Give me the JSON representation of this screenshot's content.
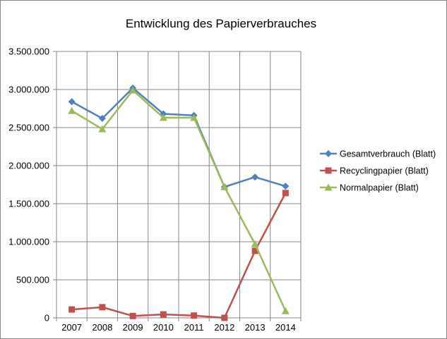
{
  "chart_data": {
    "type": "line",
    "title": "Entwicklung des Papierverbrauches",
    "xlabel": "",
    "ylabel": "",
    "categories": [
      "2007",
      "2008",
      "2009",
      "2010",
      "2011",
      "2012",
      "2013",
      "2014"
    ],
    "ylim": [
      0,
      3500000
    ],
    "yticks": [
      0,
      500000,
      1000000,
      1500000,
      2000000,
      2500000,
      3000000,
      3500000
    ],
    "ytick_labels": [
      "0",
      "500.000",
      "1.000.000",
      "1.500.000",
      "2.000.000",
      "2.500.000",
      "3.000.000",
      "3.500.000"
    ],
    "grid": true,
    "legend_position": "right",
    "series": [
      {
        "name": "Gesamtverbrauch (Blatt)",
        "color": "#4F81BD",
        "marker": "diamond",
        "values": [
          2840000,
          2620000,
          3020000,
          2680000,
          2660000,
          1720000,
          1850000,
          1730000
        ]
      },
      {
        "name": "Recyclingpapier (Blatt)",
        "color": "#C0504D",
        "marker": "square",
        "values": [
          110000,
          140000,
          25000,
          45000,
          30000,
          0,
          880000,
          1640000
        ]
      },
      {
        "name": "Normalpapier (Blatt)",
        "color": "#9BBB59",
        "marker": "triangle",
        "values": [
          2720000,
          2480000,
          2990000,
          2630000,
          2630000,
          1720000,
          970000,
          90000
        ]
      }
    ]
  }
}
